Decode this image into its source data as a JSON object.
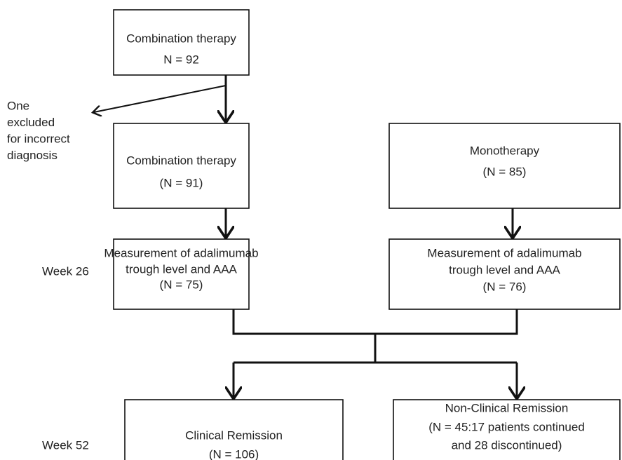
{
  "nodes": [
    {
      "lines": [
        "Combination therapy",
        "N = 92"
      ]
    },
    {
      "lines": [
        "Combination therapy",
        "(N = 91)"
      ]
    },
    {
      "lines": [
        "Monotherapy",
        "(N = 85)"
      ]
    },
    {
      "lines": [
        "Measurement of adalimumab",
        "trough level and AAA",
        "(N = 75)"
      ]
    },
    {
      "lines": [
        "Measurement of adalimumab",
        "trough level and AAA",
        "(N = 76)"
      ]
    },
    {
      "lines": [
        "Clinical Remission",
        "(N = 106)"
      ]
    },
    {
      "lines": [
        "Non-Clinical Remission",
        "(N = 45:17 patients continued",
        "and 28 discontinued)"
      ]
    }
  ],
  "exclusion": {
    "lines": [
      "One",
      "excluded",
      "for incorrect",
      "diagnosis"
    ]
  },
  "time_labels": [
    "Week 26",
    "Week 52"
  ]
}
